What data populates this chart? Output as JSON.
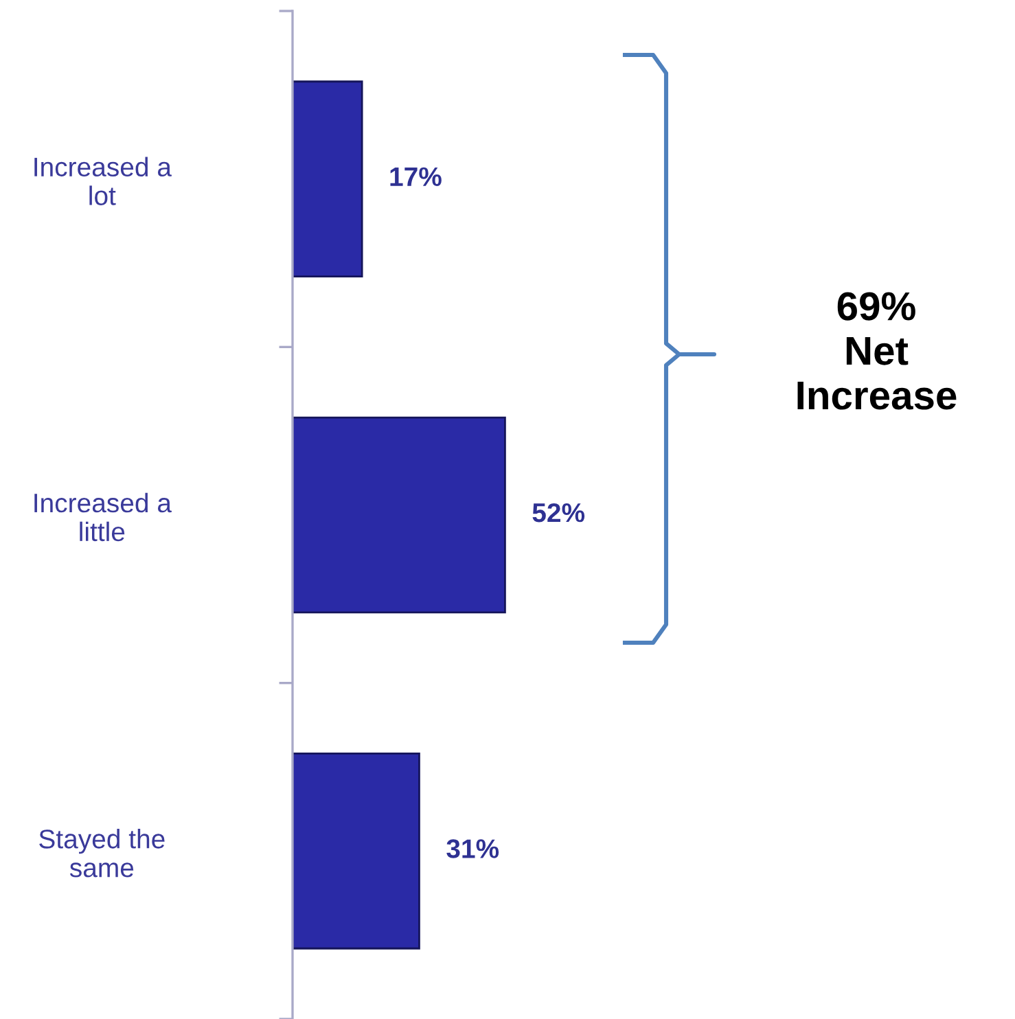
{
  "chart_data": {
    "type": "bar",
    "orientation": "horizontal",
    "categories": [
      "Increased a lot",
      "Increased a little",
      "Stayed the same"
    ],
    "values": [
      17,
      52,
      31
    ],
    "value_labels": [
      "17%",
      "52%",
      "31%"
    ],
    "color": "#2a2aa6",
    "grid": false,
    "legend": false,
    "tick_labels": "y",
    "annotations": [
      "69%\nNet\nIncrease"
    ]
  }
}
